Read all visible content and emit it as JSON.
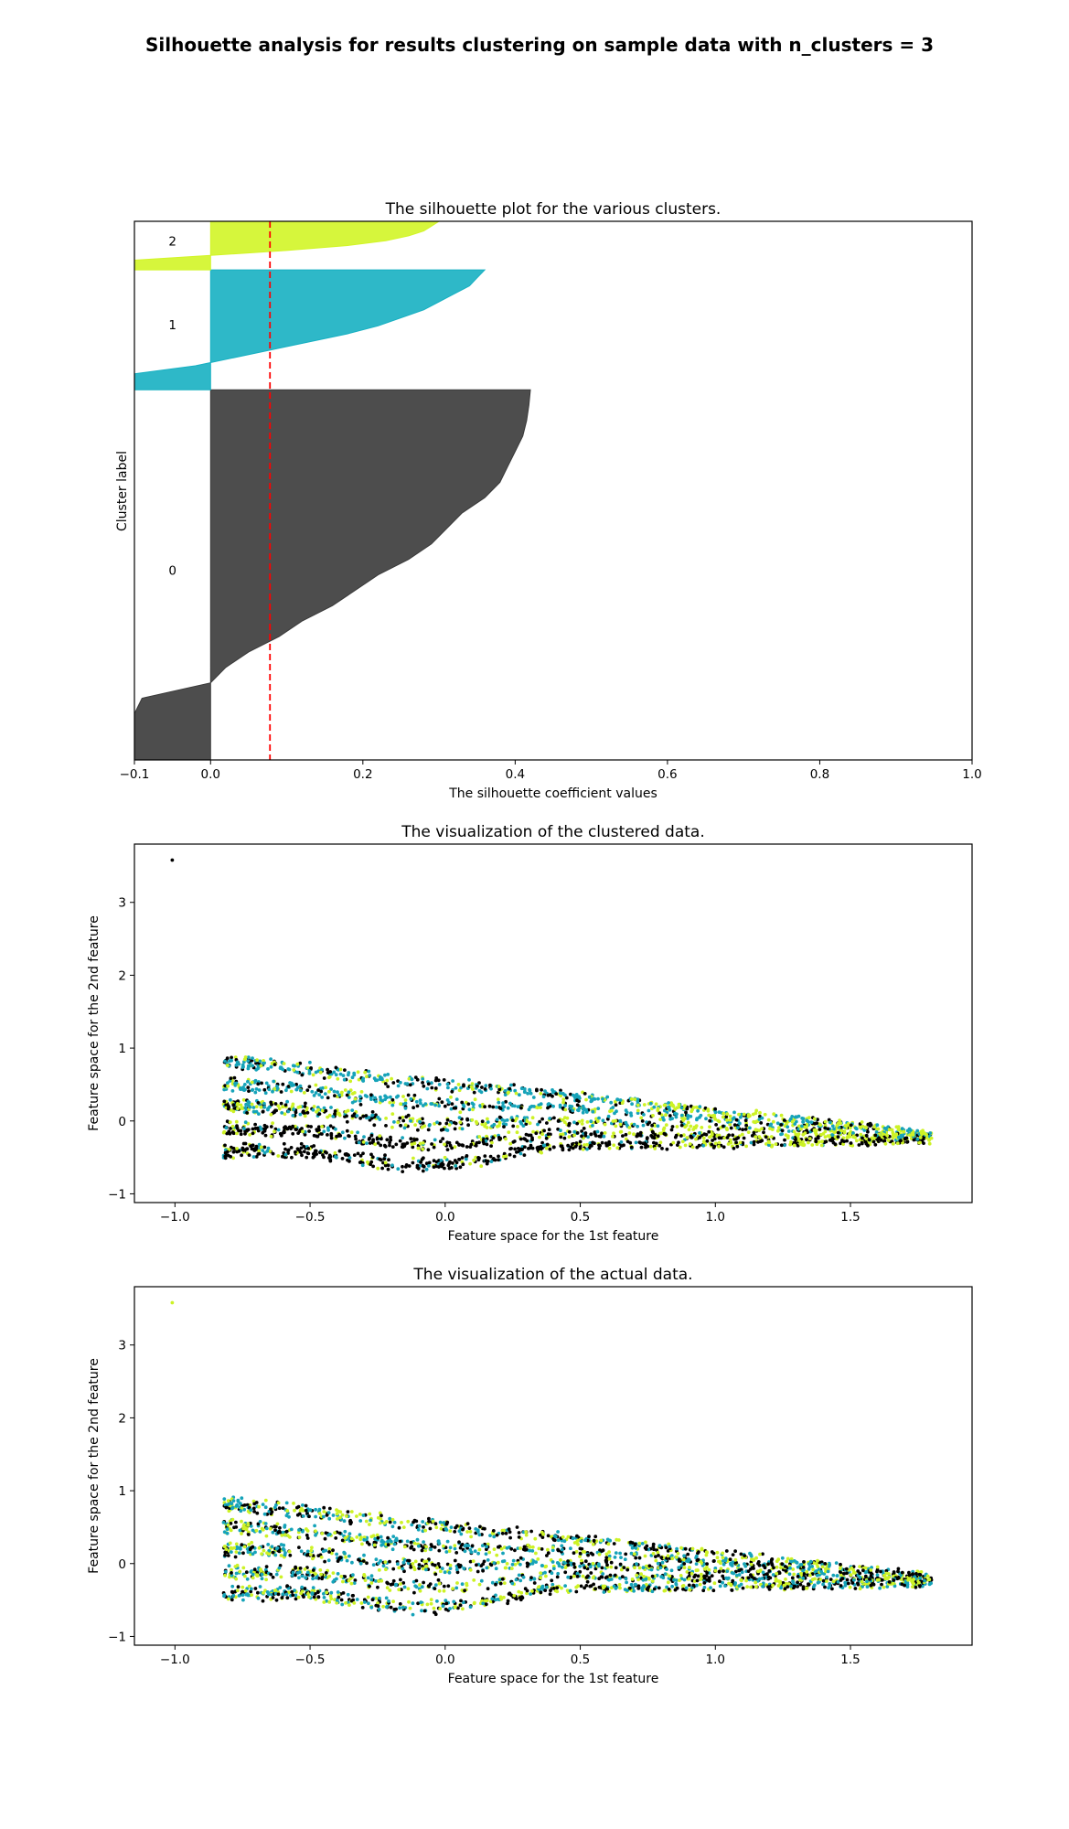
{
  "suptitle": "Silhouette analysis for results clustering on sample data with n_clusters = 3",
  "chart_data": [
    {
      "type": "area",
      "title": "The silhouette plot for the various clusters.",
      "xlabel": "The silhouette coefficient values",
      "ylabel": "Cluster label",
      "xlim": [
        -0.1,
        1.0
      ],
      "ylim": [
        0,
        710
      ],
      "xticks": [
        "−0.1",
        "0.0",
        "0.2",
        "0.4",
        "0.6",
        "0.8",
        "1.0"
      ],
      "xtick_values": [
        -0.1,
        0.0,
        0.2,
        0.4,
        0.6,
        0.8,
        1.0
      ],
      "average_silhouette": 0.078,
      "average_line_color": "#ff0000",
      "clusters": [
        {
          "label": "0",
          "color": "#3a3a3a",
          "y_lower": 0,
          "y_upper": 488,
          "label_y": 250,
          "sorted_values": [
            -0.1,
            -0.1,
            -0.1,
            -0.1,
            -0.09,
            0.0,
            0.02,
            0.05,
            0.09,
            0.12,
            0.16,
            0.19,
            0.22,
            0.26,
            0.29,
            0.31,
            0.33,
            0.36,
            0.38,
            0.39,
            0.4,
            0.41,
            0.415,
            0.418,
            0.42
          ]
        },
        {
          "label": "1",
          "color": "#17b0c2",
          "y_lower": 488,
          "y_upper": 646,
          "label_y": 574,
          "sorted_values": [
            -0.1,
            -0.1,
            -0.1,
            -0.02,
            0.03,
            0.08,
            0.13,
            0.18,
            0.22,
            0.25,
            0.28,
            0.3,
            0.32,
            0.34,
            0.35,
            0.36
          ]
        },
        {
          "label": "2",
          "color": "#d2f527",
          "y_lower": 646,
          "y_upper": 710,
          "label_y": 684,
          "sorted_values": [
            -0.1,
            -0.1,
            -0.1,
            0.0,
            0.1,
            0.18,
            0.23,
            0.26,
            0.28,
            0.29,
            0.3
          ]
        }
      ]
    },
    {
      "type": "scatter",
      "title": "The visualization of the clustered data.",
      "xlabel": "Feature space for the 1st feature",
      "ylabel": "Feature space for the 2nd feature",
      "xlim": [
        -1.15,
        1.95
      ],
      "ylim": [
        -1.12,
        3.8
      ],
      "xticks": [
        "−1.0",
        "−0.5",
        "0.0",
        "0.5",
        "1.0",
        "1.5"
      ],
      "xtick_values": [
        -1.0,
        -0.5,
        0.0,
        0.5,
        1.0,
        1.5
      ],
      "yticks": [
        "−1",
        "0",
        "1",
        "2",
        "3"
      ],
      "ytick_values": [
        -1,
        0,
        1,
        2,
        3
      ],
      "colors": [
        "#000000",
        "#16a3b9",
        "#cdf226"
      ],
      "outlier": {
        "x": -1.01,
        "y": 3.58,
        "color": "#000000"
      },
      "cloud": {
        "x_range": [
          -0.82,
          1.8
        ],
        "y_top_left": 0.95,
        "y_bottom_left": -0.6,
        "y_right_top": -0.15,
        "y_right_bottom": -0.3,
        "bottom_dip": -0.88
      }
    },
    {
      "type": "scatter",
      "title": "The visualization of the actual data.",
      "xlabel": "Feature space for the 1st feature",
      "ylabel": "Feature space for the 2nd feature",
      "xlim": [
        -1.15,
        1.95
      ],
      "ylim": [
        -1.12,
        3.8
      ],
      "xticks": [
        "−1.0",
        "−0.5",
        "0.0",
        "0.5",
        "1.0",
        "1.5"
      ],
      "xtick_values": [
        -1.0,
        -0.5,
        0.0,
        0.5,
        1.0,
        1.5
      ],
      "yticks": [
        "−1",
        "0",
        "1",
        "2",
        "3"
      ],
      "ytick_values": [
        -1,
        0,
        1,
        2,
        3
      ],
      "colors": [
        "#000000",
        "#16a3b9",
        "#cdf226"
      ],
      "outlier": {
        "x": -1.01,
        "y": 3.58,
        "color": "#cdf226"
      },
      "cloud": {
        "x_range": [
          -0.82,
          1.8
        ],
        "y_top_left": 0.95,
        "y_bottom_left": -0.6,
        "y_right_top": -0.15,
        "y_right_bottom": -0.3,
        "bottom_dip": -0.88
      }
    }
  ]
}
